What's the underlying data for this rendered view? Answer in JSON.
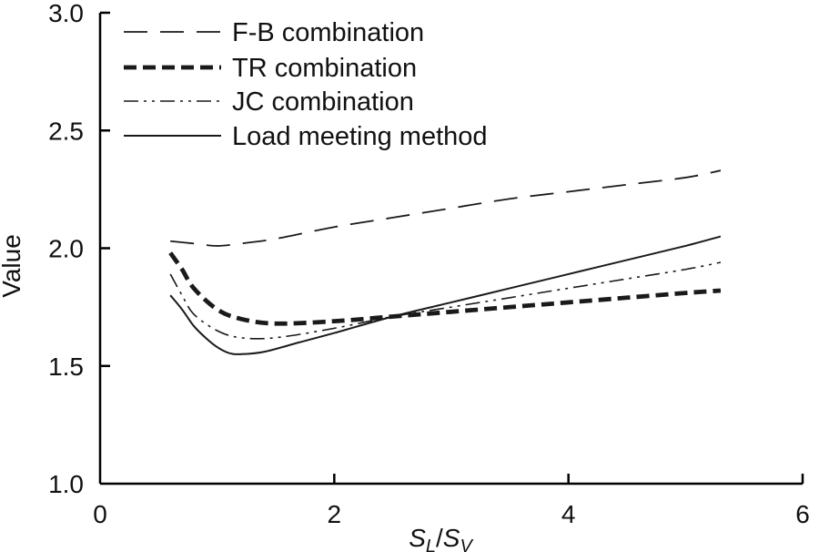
{
  "chart_data": {
    "type": "line",
    "title": "",
    "xlabel": {
      "main": "S",
      "sub1": "L",
      "slash": "/",
      "main2": "S",
      "sub2": "V"
    },
    "ylabel": "Value",
    "xlim": [
      0,
      6
    ],
    "ylim": [
      1.0,
      3.0
    ],
    "xticks": [
      "0",
      "2",
      "4",
      "6"
    ],
    "yticks": [
      "1.0",
      "1.5",
      "2.0",
      "2.5",
      "3.0"
    ],
    "grid": false,
    "legend_position": "top-left",
    "series": [
      {
        "name": "F-B combination",
        "style": "dashed",
        "x": [
          0.6,
          0.8,
          1.0,
          1.2,
          1.5,
          2.0,
          2.5,
          3.0,
          3.5,
          4.0,
          4.5,
          5.0,
          5.3
        ],
        "y": [
          2.03,
          2.02,
          2.01,
          2.02,
          2.04,
          2.09,
          2.13,
          2.17,
          2.21,
          2.24,
          2.27,
          2.3,
          2.33
        ]
      },
      {
        "name": "TR combination",
        "style": "bold-dashed",
        "x": [
          0.6,
          0.7,
          0.8,
          1.0,
          1.2,
          1.5,
          2.0,
          2.5,
          3.0,
          3.5,
          4.0,
          4.5,
          5.0,
          5.3
        ],
        "y": [
          1.98,
          1.91,
          1.83,
          1.74,
          1.7,
          1.68,
          1.69,
          1.71,
          1.73,
          1.75,
          1.77,
          1.79,
          1.81,
          1.82
        ]
      },
      {
        "name": "JC combination",
        "style": "dash-dot-dot",
        "x": [
          0.6,
          0.7,
          0.8,
          1.0,
          1.2,
          1.5,
          2.0,
          2.5,
          3.0,
          3.5,
          4.0,
          4.5,
          5.0,
          5.3
        ],
        "y": [
          1.89,
          1.8,
          1.72,
          1.65,
          1.62,
          1.62,
          1.66,
          1.71,
          1.75,
          1.79,
          1.83,
          1.87,
          1.91,
          1.94
        ]
      },
      {
        "name": "Load meeting method",
        "style": "solid",
        "x": [
          0.6,
          0.7,
          0.8,
          0.9,
          1.0,
          1.1,
          1.2,
          1.4,
          1.7,
          2.0,
          2.5,
          3.0,
          3.5,
          4.0,
          4.5,
          5.0,
          5.3
        ],
        "y": [
          1.8,
          1.74,
          1.67,
          1.62,
          1.58,
          1.555,
          1.55,
          1.56,
          1.6,
          1.64,
          1.71,
          1.77,
          1.83,
          1.89,
          1.95,
          2.01,
          2.05
        ]
      }
    ]
  }
}
